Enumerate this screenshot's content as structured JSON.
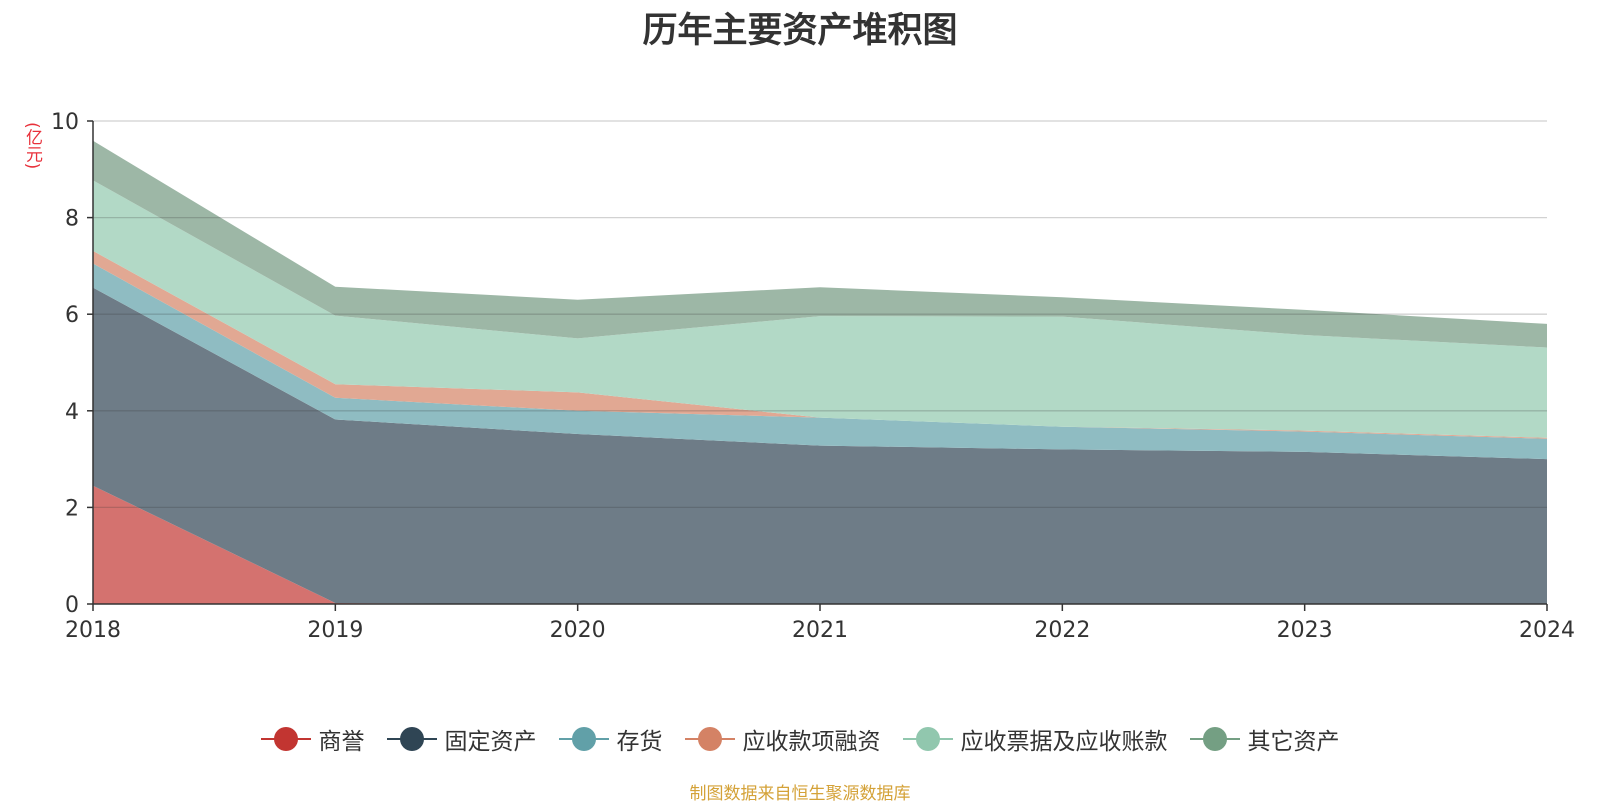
{
  "chart_data": {
    "type": "area",
    "stacked": true,
    "title": "历年主要资产堆积图",
    "unit": "(亿元)",
    "x": [
      "2018",
      "2019",
      "2020",
      "2021",
      "2022",
      "2023",
      "2024"
    ],
    "yticks": [
      "0",
      "2",
      "4",
      "6",
      "8",
      "10"
    ],
    "ylim": [
      0,
      10
    ],
    "grid": true,
    "legend_position": "bottom",
    "series": [
      {
        "name": "商誉",
        "color": "#c23531",
        "fill": "#d4726f",
        "values": [
          2.45,
          0.02,
          0.0,
          0.0,
          0.0,
          0.0,
          0.0
        ]
      },
      {
        "name": "固定资产",
        "color": "#2f4554",
        "fill": "#6e7c87",
        "values": [
          4.1,
          3.8,
          3.52,
          3.28,
          3.2,
          3.15,
          3.0
        ]
      },
      {
        "name": "存货",
        "color": "#61a0a8",
        "fill": "#8fbcc2",
        "values": [
          0.5,
          0.45,
          0.48,
          0.58,
          0.47,
          0.42,
          0.42
        ]
      },
      {
        "name": "应收款项融资",
        "color": "#d48265",
        "fill": "#e1a893",
        "values": [
          0.26,
          0.28,
          0.38,
          0.0,
          0.0,
          0.02,
          0.02
        ]
      },
      {
        "name": "应收票据及应收账款",
        "color": "#91c7ae",
        "fill": "#b2d9c6",
        "values": [
          1.46,
          1.42,
          1.12,
          2.1,
          2.28,
          1.98,
          1.87
        ]
      },
      {
        "name": "其它资产",
        "color": "#749f83",
        "fill": "#9db7a6",
        "values": [
          0.82,
          0.6,
          0.8,
          0.6,
          0.4,
          0.52,
          0.49
        ]
      }
    ]
  },
  "source": "制图数据来自恒生聚源数据库"
}
